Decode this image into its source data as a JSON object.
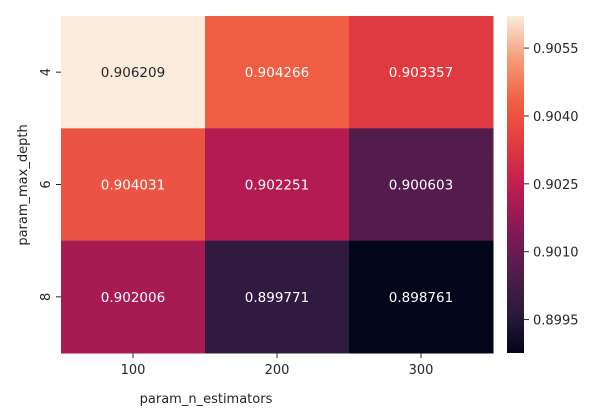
{
  "chart_data": {
    "type": "heatmap",
    "title": "",
    "xlabel": "param_n_estimators",
    "ylabel": "param_max_depth",
    "x_categories": [
      "100",
      "200",
      "300"
    ],
    "y_categories": [
      "4",
      "6",
      "8"
    ],
    "values": [
      [
        0.906209,
        0.904266,
        0.903357
      ],
      [
        0.904031,
        0.902251,
        0.900603
      ],
      [
        0.902006,
        0.899771,
        0.898761
      ]
    ],
    "value_labels": [
      [
        "0.906209",
        "0.904266",
        "0.903357"
      ],
      [
        "0.904031",
        "0.902251",
        "0.900603"
      ],
      [
        "0.902006",
        "0.899771",
        "0.898761"
      ]
    ],
    "colorbar": {
      "vmin": 0.898761,
      "vmax": 0.906209,
      "tick_values": [
        0.8995,
        0.901,
        0.9025,
        0.904,
        0.9055
      ],
      "tick_labels": [
        "0.8995",
        "0.9010",
        "0.9025",
        "0.9040",
        "0.9055"
      ]
    },
    "colormap": "rocket",
    "grid": false,
    "legend": "colorbar-right"
  }
}
